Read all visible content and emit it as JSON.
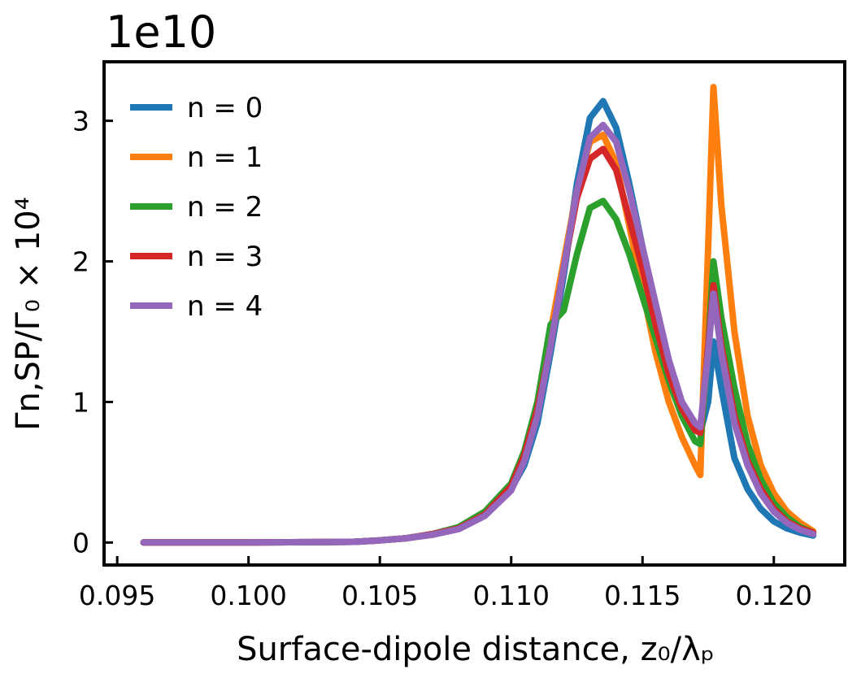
{
  "chart_data": {
    "type": "line",
    "title": "",
    "offset_text": "1e10",
    "xlabel": "Surface-dipole distance, z₀/λₚ",
    "ylabel": "Γn,SP/Γ₀ × 10⁴",
    "xlim": [
      0.0945,
      0.1227
    ],
    "ylim": [
      -0.16,
      3.42
    ],
    "x_ticks": [
      0.095,
      0.1,
      0.105,
      0.11,
      0.115,
      0.12
    ],
    "x_tick_labels": [
      "0.095",
      "0.100",
      "0.105",
      "0.110",
      "0.115",
      "0.120"
    ],
    "y_ticks": [
      0,
      1,
      2,
      3
    ],
    "y_tick_labels": [
      "0",
      "1",
      "2",
      "3"
    ],
    "grid": false,
    "legend_position": "top-left",
    "series": [
      {
        "name": "n = 0",
        "color": "#1f77b4",
        "x": [
          0.096,
          0.1,
          0.104,
          0.105,
          0.106,
          0.107,
          0.108,
          0.109,
          0.11,
          0.1105,
          0.111,
          0.1115,
          0.112,
          0.1125,
          0.113,
          0.1135,
          0.114,
          0.1145,
          0.115,
          0.1155,
          0.116,
          0.1165,
          0.117,
          0.1172,
          0.1175,
          0.1177,
          0.118,
          0.1185,
          0.119,
          0.1195,
          0.12,
          0.1205,
          0.121,
          0.1215
        ],
        "y": [
          0,
          0,
          0.005,
          0.015,
          0.03,
          0.06,
          0.1,
          0.2,
          0.38,
          0.55,
          0.85,
          1.35,
          1.9,
          2.55,
          3.02,
          3.14,
          2.95,
          2.55,
          2.1,
          1.65,
          1.25,
          0.95,
          0.8,
          0.78,
          1.0,
          1.43,
          1.1,
          0.6,
          0.38,
          0.24,
          0.15,
          0.1,
          0.07,
          0.05
        ]
      },
      {
        "name": "n = 1",
        "color": "#ff7f0e",
        "x": [
          0.096,
          0.1,
          0.104,
          0.105,
          0.106,
          0.107,
          0.108,
          0.109,
          0.11,
          0.1105,
          0.111,
          0.1115,
          0.112,
          0.1125,
          0.113,
          0.1135,
          0.114,
          0.1145,
          0.115,
          0.1155,
          0.116,
          0.1165,
          0.117,
          0.1172,
          0.1175,
          0.1177,
          0.118,
          0.1185,
          0.119,
          0.1195,
          0.12,
          0.1205,
          0.121,
          0.1215
        ],
        "y": [
          0,
          0,
          0.005,
          0.015,
          0.03,
          0.055,
          0.1,
          0.21,
          0.4,
          0.6,
          0.95,
          1.5,
          2.0,
          2.5,
          2.85,
          2.9,
          2.7,
          2.25,
          1.8,
          1.35,
          1.0,
          0.75,
          0.55,
          0.48,
          2.1,
          3.24,
          2.4,
          1.5,
          0.9,
          0.55,
          0.35,
          0.22,
          0.14,
          0.08
        ]
      },
      {
        "name": "n = 2",
        "color": "#2ca02c",
        "x": [
          0.096,
          0.1,
          0.104,
          0.105,
          0.106,
          0.107,
          0.108,
          0.109,
          0.11,
          0.1105,
          0.111,
          0.1115,
          0.112,
          0.1125,
          0.113,
          0.1135,
          0.114,
          0.1145,
          0.115,
          0.1155,
          0.116,
          0.1165,
          0.117,
          0.1172,
          0.1175,
          0.1177,
          0.118,
          0.1185,
          0.119,
          0.1195,
          0.12,
          0.1205,
          0.121,
          0.1215
        ],
        "y": [
          0,
          0,
          0.005,
          0.015,
          0.03,
          0.06,
          0.11,
          0.22,
          0.42,
          0.65,
          1.0,
          1.55,
          1.65,
          2.05,
          2.38,
          2.43,
          2.3,
          2.05,
          1.75,
          1.45,
          1.15,
          0.9,
          0.72,
          0.7,
          1.4,
          2.0,
          1.6,
          1.1,
          0.7,
          0.45,
          0.28,
          0.18,
          0.11,
          0.07
        ]
      },
      {
        "name": "n = 3",
        "color": "#d62728",
        "x": [
          0.096,
          0.1,
          0.104,
          0.105,
          0.106,
          0.107,
          0.108,
          0.109,
          0.11,
          0.1105,
          0.111,
          0.1115,
          0.112,
          0.1125,
          0.113,
          0.1135,
          0.114,
          0.1145,
          0.115,
          0.1155,
          0.116,
          0.1165,
          0.117,
          0.1172,
          0.1175,
          0.1177,
          0.118,
          0.1185,
          0.119,
          0.1195,
          0.12,
          0.1205,
          0.121,
          0.1215
        ],
        "y": [
          0,
          0,
          0.005,
          0.015,
          0.03,
          0.06,
          0.1,
          0.2,
          0.4,
          0.62,
          0.95,
          1.4,
          1.95,
          2.45,
          2.73,
          2.8,
          2.65,
          2.3,
          1.95,
          1.55,
          1.2,
          0.95,
          0.8,
          0.78,
          1.4,
          1.83,
          1.4,
          0.9,
          0.58,
          0.38,
          0.24,
          0.15,
          0.1,
          0.07
        ]
      },
      {
        "name": "n = 4",
        "color": "#9467bd",
        "x": [
          0.096,
          0.1,
          0.104,
          0.105,
          0.106,
          0.107,
          0.108,
          0.109,
          0.11,
          0.1105,
          0.111,
          0.1115,
          0.112,
          0.1125,
          0.113,
          0.1135,
          0.114,
          0.1145,
          0.115,
          0.1155,
          0.116,
          0.1165,
          0.117,
          0.1172,
          0.1175,
          0.1177,
          0.118,
          0.1185,
          0.119,
          0.1195,
          0.12,
          0.1205,
          0.121,
          0.1215
        ],
        "y": [
          0,
          0,
          0.005,
          0.015,
          0.03,
          0.055,
          0.095,
          0.19,
          0.37,
          0.58,
          0.9,
          1.4,
          1.95,
          2.5,
          2.88,
          2.97,
          2.85,
          2.5,
          2.1,
          1.7,
          1.3,
          1.0,
          0.85,
          0.82,
          1.35,
          1.77,
          1.35,
          0.85,
          0.55,
          0.35,
          0.22,
          0.14,
          0.09,
          0.06
        ]
      }
    ]
  }
}
